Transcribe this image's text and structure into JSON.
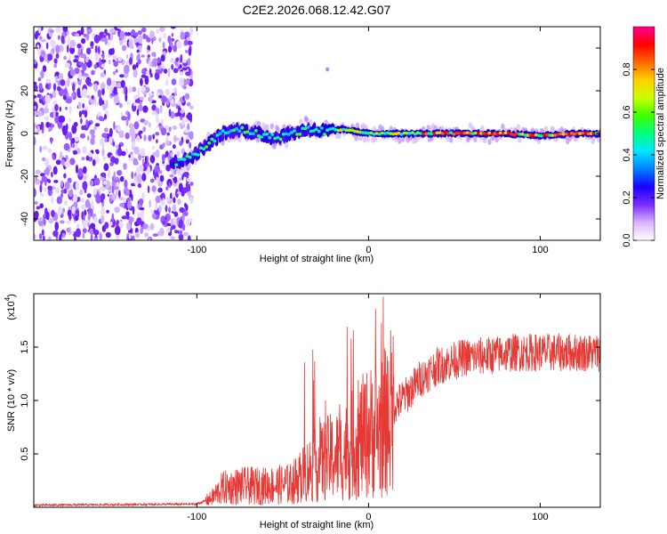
{
  "title": "C2E2.2026.068.12.42.G07",
  "spectrogram": {
    "type": "heatmap",
    "xlabel": "Height of straight line (km)",
    "ylabel": "Frequency (Hz)",
    "xlim": [
      -195,
      135
    ],
    "ylim": [
      -50,
      50
    ],
    "xticks": [
      -100,
      0,
      100
    ],
    "xtick_labels": [
      "-100",
      "0",
      "100"
    ],
    "yticks": [
      -40,
      -20,
      0,
      20,
      40
    ],
    "ytick_labels": [
      "-40",
      "-20",
      "0",
      "20",
      "40"
    ],
    "noise_region_xmax": -103,
    "ridge": [
      {
        "x": -115,
        "y": -14
      },
      {
        "x": -105,
        "y": -12
      },
      {
        "x": -95,
        "y": -6
      },
      {
        "x": -85,
        "y": 0
      },
      {
        "x": -75,
        "y": 2
      },
      {
        "x": -65,
        "y": 0
      },
      {
        "x": -55,
        "y": -2
      },
      {
        "x": -45,
        "y": 0
      },
      {
        "x": -35,
        "y": 2
      },
      {
        "x": -25,
        "y": 1
      },
      {
        "x": -15,
        "y": 2
      },
      {
        "x": 0,
        "y": 0
      },
      {
        "x": 20,
        "y": 0
      },
      {
        "x": 40,
        "y": 0
      },
      {
        "x": 60,
        "y": 0
      },
      {
        "x": 80,
        "y": 0
      },
      {
        "x": 100,
        "y": -1
      },
      {
        "x": 120,
        "y": 0
      },
      {
        "x": 135,
        "y": 0
      }
    ]
  },
  "colorbar": {
    "label": "Normalized spectral amplitude",
    "range": [
      0.0,
      1.0
    ],
    "ticks": [
      0.0,
      0.2,
      0.4,
      0.6,
      0.8
    ],
    "tick_labels": [
      "0.0",
      "0.2",
      "0.4",
      "0.6",
      "0.8"
    ],
    "colors": [
      "#ffffff",
      "#d9b3ff",
      "#7a2cff",
      "#1a00ff",
      "#0080ff",
      "#00e5ff",
      "#00ff80",
      "#40ff00",
      "#c8ff00",
      "#ffd000",
      "#ff6a00",
      "#ff0000",
      "#ff0090"
    ]
  },
  "snr": {
    "type": "line",
    "xlabel": "Height of straight line (km)",
    "ylabel": "SNR (10 * v/v)",
    "scale_label": "(x10",
    "scale_exp": "4",
    "scale_close": ")",
    "xlim": [
      -195,
      135
    ],
    "ylim": [
      0,
      2.0
    ],
    "xticks": [
      -100,
      0,
      100
    ],
    "xtick_labels": [
      "-100",
      "0",
      "100"
    ],
    "yticks": [
      0.5,
      1.0,
      1.5
    ],
    "ytick_labels": [
      "0.5",
      "1.0",
      "1.5"
    ],
    "color": "#e53935",
    "envelope": [
      {
        "x": -195,
        "y": 0.02
      },
      {
        "x": -100,
        "y": 0.03
      },
      {
        "x": -92,
        "y": 0.08
      },
      {
        "x": -85,
        "y": 0.18
      },
      {
        "x": -75,
        "y": 0.2
      },
      {
        "x": -60,
        "y": 0.2
      },
      {
        "x": -45,
        "y": 0.22
      },
      {
        "x": -35,
        "y": 0.35
      },
      {
        "x": -25,
        "y": 0.45
      },
      {
        "x": -15,
        "y": 0.5
      },
      {
        "x": -8,
        "y": 0.6
      },
      {
        "x": 0,
        "y": 0.7
      },
      {
        "x": 8,
        "y": 0.75
      },
      {
        "x": 15,
        "y": 0.95
      },
      {
        "x": 22,
        "y": 1.05
      },
      {
        "x": 30,
        "y": 1.2
      },
      {
        "x": 40,
        "y": 1.32
      },
      {
        "x": 55,
        "y": 1.4
      },
      {
        "x": 70,
        "y": 1.42
      },
      {
        "x": 85,
        "y": 1.45
      },
      {
        "x": 100,
        "y": 1.45
      },
      {
        "x": 115,
        "y": 1.45
      },
      {
        "x": 135,
        "y": 1.45
      }
    ]
  }
}
